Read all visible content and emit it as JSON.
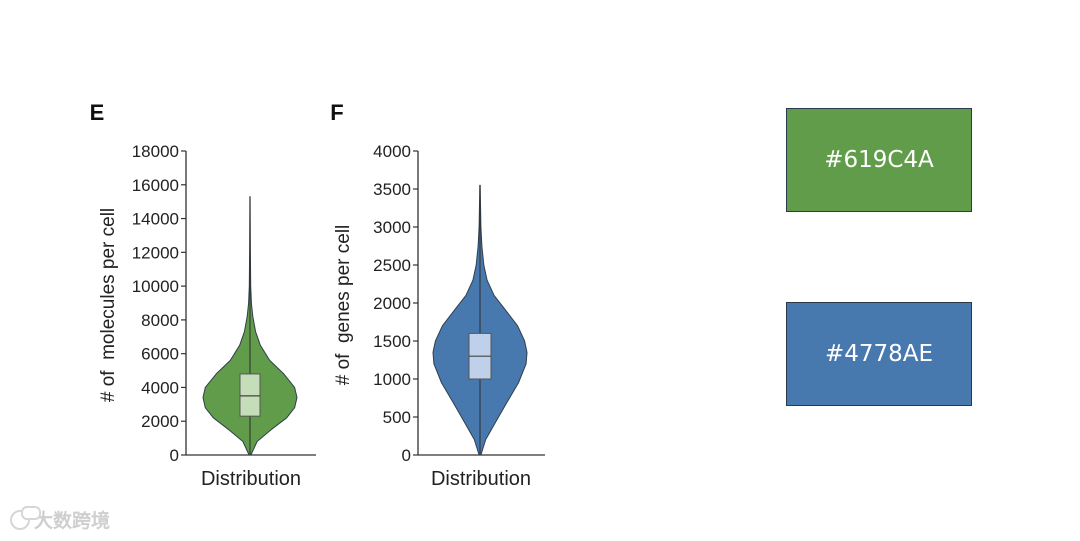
{
  "chart_data": [
    {
      "type": "violin",
      "panel_label": "E",
      "color": "#619C4A",
      "box_color": "#C5DEB9",
      "ylabel": "# of  molecules per cell",
      "xlabel": "Distribution",
      "ylim": [
        0,
        18000
      ],
      "yticks": [
        0,
        2000,
        4000,
        6000,
        8000,
        10000,
        12000,
        14000,
        16000,
        18000
      ],
      "median": 3500,
      "q1": 2300,
      "q3": 4800,
      "min": 0,
      "max": 15300,
      "density": [
        [
          0,
          0.02
        ],
        [
          800,
          0.15
        ],
        [
          1500,
          0.45
        ],
        [
          2200,
          0.78
        ],
        [
          2800,
          0.95
        ],
        [
          3400,
          1.0
        ],
        [
          4000,
          0.95
        ],
        [
          4800,
          0.72
        ],
        [
          5600,
          0.42
        ],
        [
          6500,
          0.22
        ],
        [
          7300,
          0.12
        ],
        [
          8200,
          0.06
        ],
        [
          9000,
          0.03
        ],
        [
          10000,
          0.015
        ],
        [
          12000,
          0.008
        ],
        [
          14000,
          0.005
        ],
        [
          15300,
          0.003
        ]
      ]
    },
    {
      "type": "violin",
      "panel_label": "F",
      "color": "#4778AE",
      "box_color": "#BFD0EA",
      "ylabel": "# of  genes per cell",
      "xlabel": "Distribution",
      "ylim": [
        0,
        4000
      ],
      "yticks": [
        0,
        500,
        1000,
        1500,
        2000,
        2500,
        3000,
        3500,
        4000
      ],
      "median": 1300,
      "q1": 1000,
      "q3": 1600,
      "min": 0,
      "max": 3550,
      "density": [
        [
          0,
          0.02
        ],
        [
          200,
          0.12
        ],
        [
          450,
          0.35
        ],
        [
          700,
          0.58
        ],
        [
          950,
          0.82
        ],
        [
          1200,
          0.98
        ],
        [
          1350,
          1.0
        ],
        [
          1500,
          0.95
        ],
        [
          1700,
          0.8
        ],
        [
          1900,
          0.55
        ],
        [
          2100,
          0.3
        ],
        [
          2300,
          0.15
        ],
        [
          2500,
          0.08
        ],
        [
          2750,
          0.04
        ],
        [
          3000,
          0.02
        ],
        [
          3300,
          0.01
        ],
        [
          3550,
          0.004
        ]
      ]
    }
  ],
  "swatches": [
    {
      "label": "#619C4A",
      "color": "#619C4A"
    },
    {
      "label": "#4778AE",
      "color": "#4778AE"
    }
  ],
  "watermark": {
    "text": "大数跨境"
  }
}
